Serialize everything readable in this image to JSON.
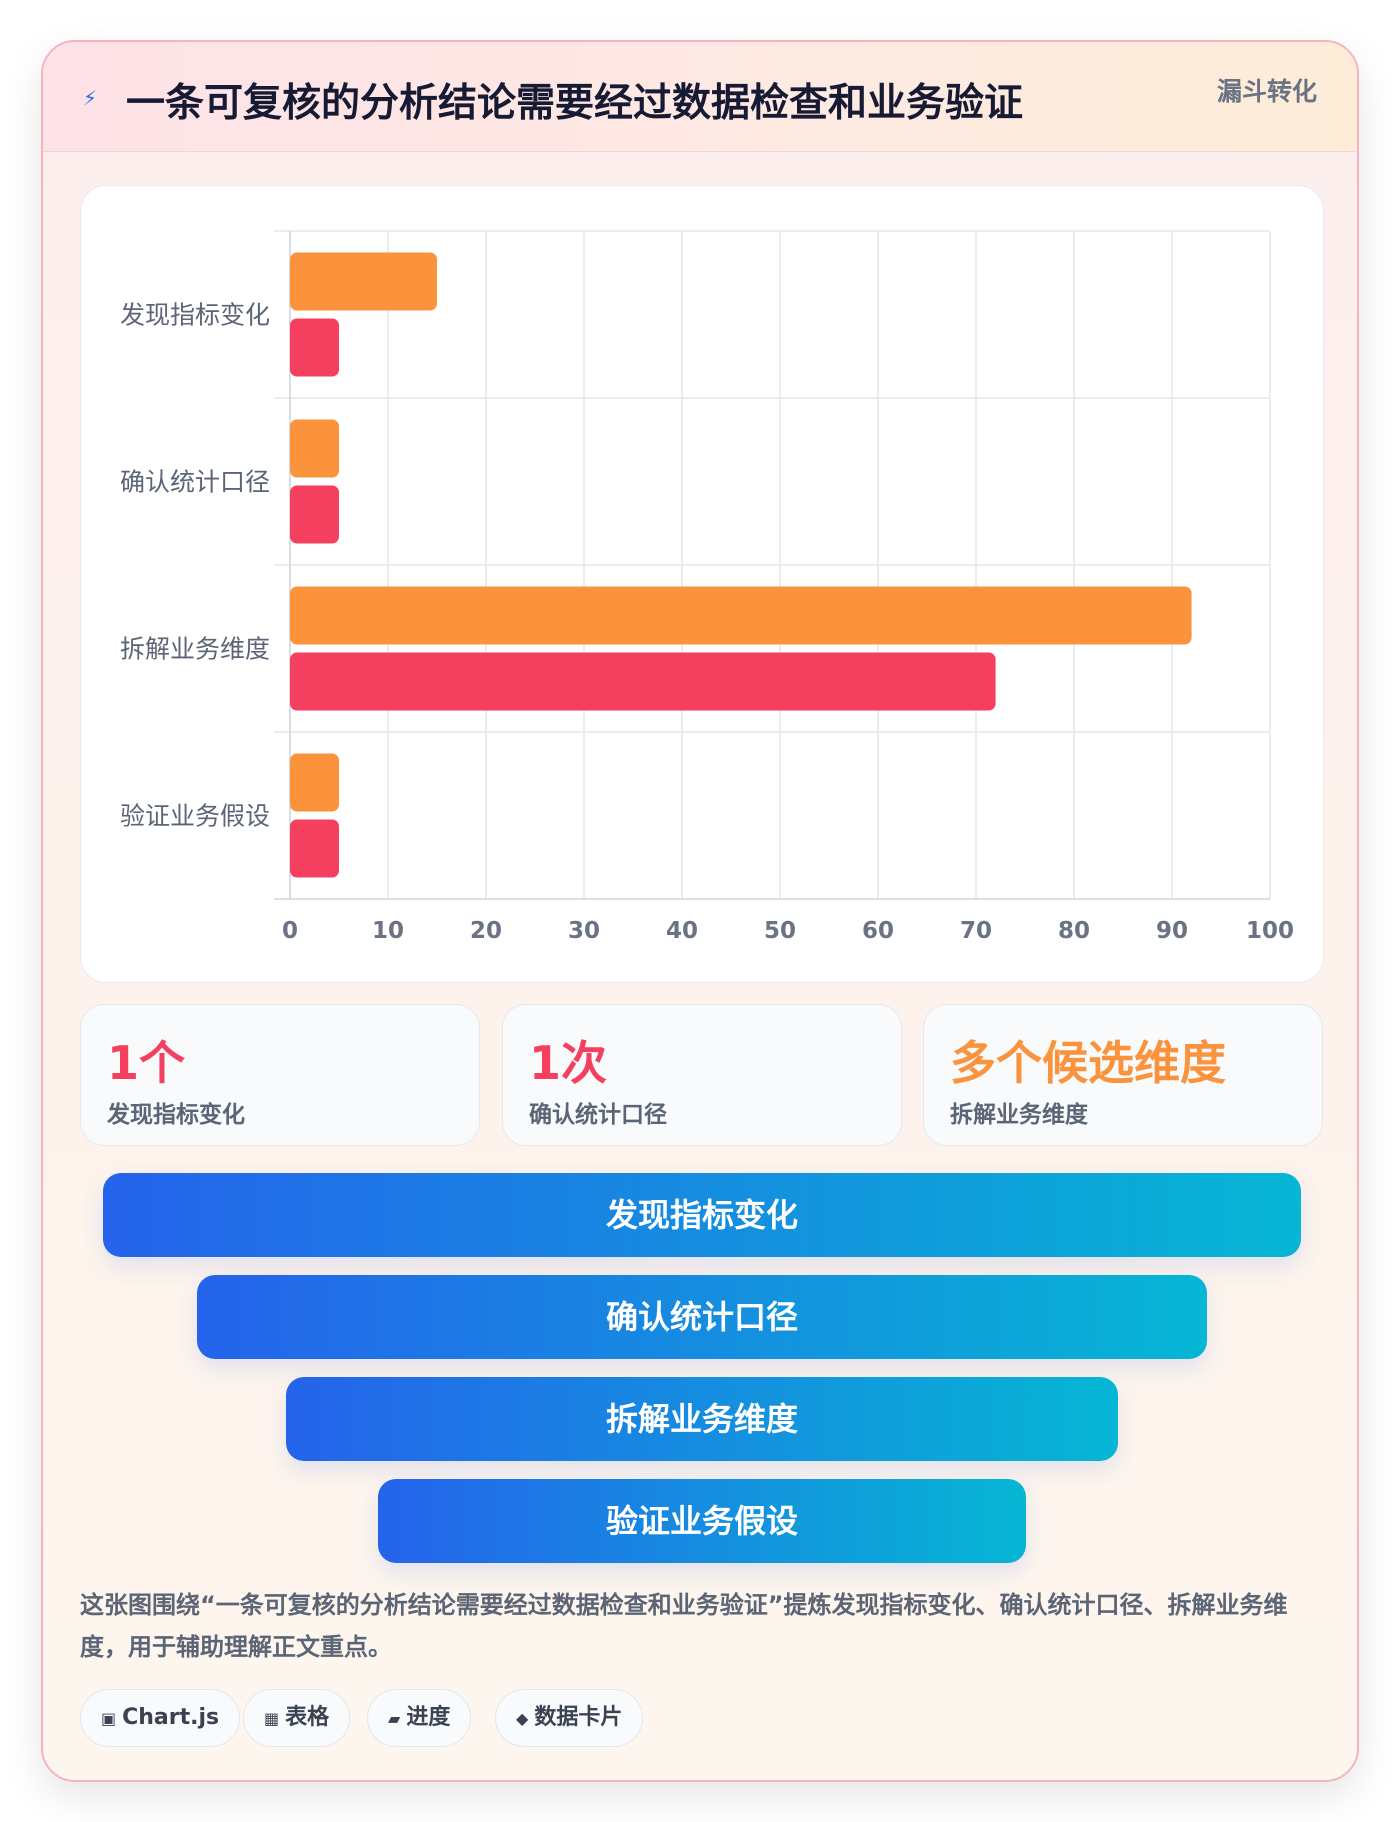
{
  "header": {
    "icon": "⚡",
    "title": "一条可复核的分析结论需要经过数据检查和业务验证",
    "tag": "漏斗转化"
  },
  "chart_data": {
    "type": "bar",
    "orientation": "horizontal",
    "categories": [
      "发现指标变化",
      "确认统计口径",
      "拆解业务维度",
      "验证业务假设"
    ],
    "series": [
      {
        "values": [
          15,
          5,
          92,
          5
        ],
        "color": "#fb923c"
      },
      {
        "values": [
          5,
          5,
          72,
          5
        ],
        "color": "#f43f5e"
      }
    ],
    "xlim": [
      0,
      100
    ],
    "x_ticks": [
      "0",
      "10",
      "20",
      "30",
      "40",
      "50",
      "60",
      "70",
      "80",
      "90",
      "100"
    ],
    "grid": true
  },
  "stats": [
    {
      "value": "1个",
      "label": "发现指标变化",
      "color": "#f43f5e"
    },
    {
      "value": "1次",
      "label": "确认统计口径",
      "color": "#f43f5e"
    },
    {
      "value": "多个候选维度",
      "label": "拆解业务维度",
      "color": "#fb923c"
    }
  ],
  "funnel": [
    "发现指标变化",
    "确认统计口径",
    "拆解业务维度",
    "验证业务假设"
  ],
  "description": "这张图围绕“一条可复核的分析结论需要经过数据检查和业务验证”提炼发现指标变化、确认统计口径、拆解业务维度，用于辅助理解正文重点。",
  "chips": [
    {
      "icon": "▣",
      "label": "Chart.js"
    },
    {
      "icon": "▦",
      "label": "表格"
    },
    {
      "icon": "▰",
      "label": "进度"
    },
    {
      "icon": "◆",
      "label": "数据卡片"
    }
  ]
}
